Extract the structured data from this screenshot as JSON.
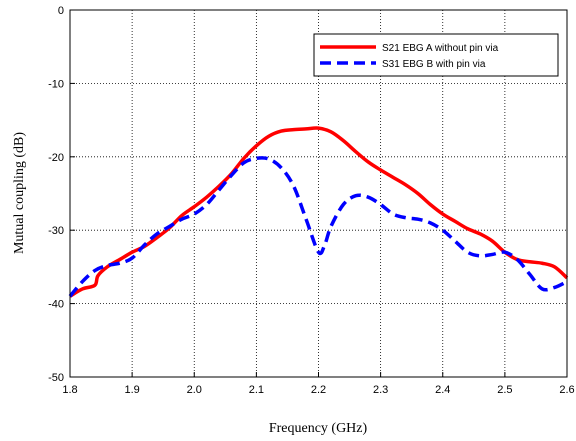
{
  "chart_data": {
    "type": "line",
    "title": "",
    "xlabel": "Frequency (GHz)",
    "ylabel": "Mutual coupling (dB)",
    "xlim": [
      1.8,
      2.6
    ],
    "ylim": [
      -50,
      0
    ],
    "xticks": [
      "1.8",
      "1.9",
      "2.0",
      "2.1",
      "2.2",
      "2.3",
      "2.4",
      "2.5",
      "2.6"
    ],
    "yticks": [
      "0",
      "-10",
      "-20",
      "-30",
      "-40",
      "-50"
    ],
    "grid": true,
    "legend_position": "top-right",
    "series": [
      {
        "name": "S21 EBG A without pin via",
        "color": "#ff0000",
        "style": "solid",
        "x": [
          1.8,
          1.82,
          1.84,
          1.845,
          1.86,
          1.88,
          1.9,
          1.92,
          1.94,
          1.96,
          1.98,
          2.0,
          2.02,
          2.04,
          2.06,
          2.08,
          2.1,
          2.12,
          2.14,
          2.16,
          2.18,
          2.2,
          2.22,
          2.24,
          2.26,
          2.28,
          2.3,
          2.32,
          2.34,
          2.36,
          2.38,
          2.4,
          2.42,
          2.44,
          2.46,
          2.48,
          2.5,
          2.52,
          2.54,
          2.56,
          2.58,
          2.6
        ],
        "y": [
          -39.0,
          -38.0,
          -37.5,
          -36.2,
          -35.0,
          -34.0,
          -33.0,
          -32.2,
          -31.0,
          -29.7,
          -28.0,
          -26.8,
          -25.5,
          -24.0,
          -22.3,
          -20.2,
          -18.5,
          -17.2,
          -16.5,
          -16.3,
          -16.2,
          -16.1,
          -16.6,
          -17.8,
          -19.3,
          -20.7,
          -21.8,
          -22.8,
          -23.8,
          -25.0,
          -26.5,
          -27.8,
          -28.8,
          -29.8,
          -30.5,
          -31.5,
          -33.0,
          -34.0,
          -34.3,
          -34.5,
          -35.0,
          -36.5
        ]
      },
      {
        "name": "S31 EBG B with pin via",
        "color": "#0000ff",
        "style": "dashed",
        "x": [
          1.8,
          1.82,
          1.84,
          1.86,
          1.88,
          1.9,
          1.92,
          1.94,
          1.96,
          1.98,
          2.0,
          2.02,
          2.04,
          2.06,
          2.08,
          2.1,
          2.12,
          2.14,
          2.16,
          2.18,
          2.2,
          2.21,
          2.22,
          2.24,
          2.26,
          2.28,
          2.3,
          2.32,
          2.34,
          2.36,
          2.38,
          2.4,
          2.42,
          2.44,
          2.46,
          2.48,
          2.5,
          2.52,
          2.54,
          2.56,
          2.58,
          2.6
        ],
        "y": [
          -39.0,
          -37.0,
          -35.5,
          -34.8,
          -34.5,
          -33.8,
          -32.0,
          -30.5,
          -29.5,
          -28.5,
          -27.8,
          -26.5,
          -24.5,
          -22.5,
          -20.8,
          -20.2,
          -20.3,
          -21.5,
          -24.0,
          -28.5,
          -33.0,
          -32.0,
          -29.5,
          -26.5,
          -25.3,
          -25.5,
          -26.5,
          -27.8,
          -28.3,
          -28.5,
          -29.0,
          -30.0,
          -31.5,
          -33.0,
          -33.5,
          -33.3,
          -33.0,
          -34.0,
          -36.0,
          -38.0,
          -37.8,
          -37.0
        ]
      }
    ]
  }
}
